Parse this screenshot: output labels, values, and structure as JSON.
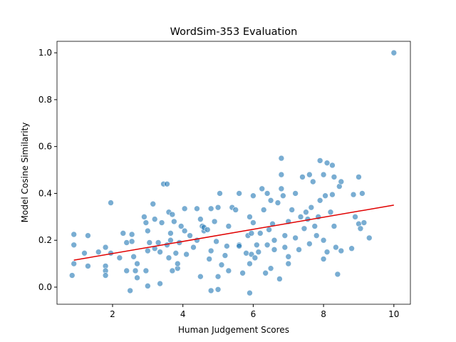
{
  "chart_data": {
    "type": "scatter",
    "title": "WordSim-353 Evaluation",
    "x_label": "Human Judgement Scores",
    "y_label": "Model Cosine Similarity",
    "xlim": [
      0.42,
      10.47
    ],
    "ylim": [
      -0.073,
      1.049
    ],
    "xticks": [
      2,
      4,
      6,
      8,
      10
    ],
    "yticks": [
      {
        "value": 0,
        "label": "0.0"
      },
      {
        "value": 0.2,
        "label": "0.2"
      },
      {
        "value": 0.4,
        "label": "0.4"
      },
      {
        "value": 0.6,
        "label": "0.6"
      },
      {
        "value": 0.8,
        "label": "0.8"
      },
      {
        "value": 1.0,
        "label": "1.0"
      }
    ],
    "grid": false,
    "series": [
      {
        "type": "scatter",
        "color": "#1f77b4",
        "x": [
          0.85,
          0.9,
          0.9,
          0.9,
          1.2,
          1.3,
          1.3,
          1.6,
          1.8,
          1.8,
          1.8,
          1.8,
          1.95,
          1.95,
          2.2,
          2.3,
          2.4,
          2.4,
          2.5,
          2.55,
          2.55,
          2.6,
          2.65,
          2.7,
          2.7,
          2.9,
          2.95,
          2.95,
          3.0,
          3.0,
          3.0,
          3.05,
          3.15,
          3.2,
          3.2,
          3.3,
          3.35,
          3.35,
          3.4,
          3.45,
          3.55,
          3.55,
          3.6,
          3.6,
          3.65,
          3.65,
          3.7,
          3.7,
          3.75,
          3.8,
          3.85,
          3.85,
          3.9,
          3.95,
          4.05,
          4.05,
          4.1,
          4.2,
          4.3,
          4.4,
          4.4,
          4.5,
          4.5,
          4.55,
          4.6,
          4.6,
          4.7,
          4.75,
          4.8,
          4.8,
          4.8,
          4.9,
          4.95,
          5.0,
          5.0,
          5.0,
          5.05,
          5.1,
          5.2,
          5.25,
          5.3,
          5.3,
          5.4,
          5.5,
          5.6,
          5.6,
          5.6,
          5.7,
          5.8,
          5.85,
          5.9,
          5.9,
          5.9,
          5.95,
          5.95,
          6.0,
          6.0,
          6.05,
          6.1,
          6.15,
          6.2,
          6.25,
          6.3,
          6.35,
          6.4,
          6.4,
          6.45,
          6.5,
          6.5,
          6.55,
          6.6,
          6.6,
          6.7,
          6.75,
          6.8,
          6.8,
          6.8,
          6.85,
          6.9,
          6.9,
          7.0,
          7.0,
          7.0,
          7.1,
          7.2,
          7.2,
          7.3,
          7.35,
          7.4,
          7.45,
          7.5,
          7.55,
          7.6,
          7.6,
          7.65,
          7.7,
          7.75,
          7.8,
          7.85,
          7.9,
          7.9,
          8.0,
          8.0,
          8.0,
          8.05,
          8.1,
          8.1,
          8.2,
          8.25,
          8.25,
          8.3,
          8.3,
          8.35,
          8.4,
          8.45,
          8.5,
          8.5,
          8.8,
          8.85,
          8.9,
          9.0,
          9.0,
          9.05,
          9.1,
          9.15,
          9.3,
          10.0
        ],
        "values": [
          0.05,
          0.1,
          0.18,
          0.225,
          0.145,
          0.22,
          0.09,
          0.15,
          0.17,
          0.09,
          0.07,
          0.05,
          0.36,
          0.145,
          0.125,
          0.23,
          0.07,
          0.19,
          -0.015,
          0.225,
          0.195,
          0.13,
          0.07,
          0.04,
          0.1,
          0.3,
          0.275,
          0.07,
          0.005,
          0.155,
          0.24,
          0.19,
          0.355,
          0.29,
          0.165,
          0.19,
          0.015,
          0.15,
          0.275,
          0.44,
          0.44,
          0.18,
          0.125,
          0.32,
          0.23,
          0.2,
          0.31,
          0.07,
          0.28,
          0.145,
          0.08,
          0.1,
          0.19,
          0.26,
          0.335,
          0.24,
          0.14,
          0.22,
          0.17,
          0.2,
          0.335,
          0.045,
          0.29,
          0.26,
          0.24,
          0.255,
          0.245,
          0.12,
          0.155,
          -0.015,
          0.335,
          0.28,
          0.195,
          0.045,
          -0.01,
          0.34,
          0.4,
          0.095,
          0.135,
          0.175,
          0.26,
          0.07,
          0.34,
          0.33,
          0.18,
          0.175,
          0.4,
          0.06,
          0.145,
          0.22,
          0.3,
          -0.025,
          0.1,
          0.23,
          0.14,
          0.39,
          0.275,
          0.125,
          0.18,
          0.15,
          0.23,
          0.42,
          0.33,
          0.06,
          0.18,
          0.4,
          0.245,
          0.08,
          0.37,
          0.27,
          0.16,
          0.2,
          0.36,
          0.035,
          0.55,
          0.48,
          0.42,
          0.39,
          0.17,
          0.22,
          0.13,
          0.1,
          0.28,
          0.33,
          0.4,
          0.21,
          0.16,
          0.3,
          0.47,
          0.25,
          0.32,
          0.29,
          0.48,
          0.185,
          0.34,
          0.45,
          0.26,
          0.22,
          0.3,
          0.54,
          0.37,
          0.48,
          0.2,
          0.12,
          0.39,
          0.53,
          0.15,
          0.32,
          0.52,
          0.395,
          0.47,
          0.26,
          0.17,
          0.055,
          0.43,
          0.45,
          0.155,
          0.165,
          0.395,
          0.3,
          0.47,
          0.27,
          0.25,
          0.4,
          0.275,
          0.21,
          1.0
        ]
      },
      {
        "type": "line",
        "color": "#e00000",
        "x": [
          0.9,
          10.0
        ],
        "values": [
          0.115,
          0.35
        ]
      }
    ]
  }
}
